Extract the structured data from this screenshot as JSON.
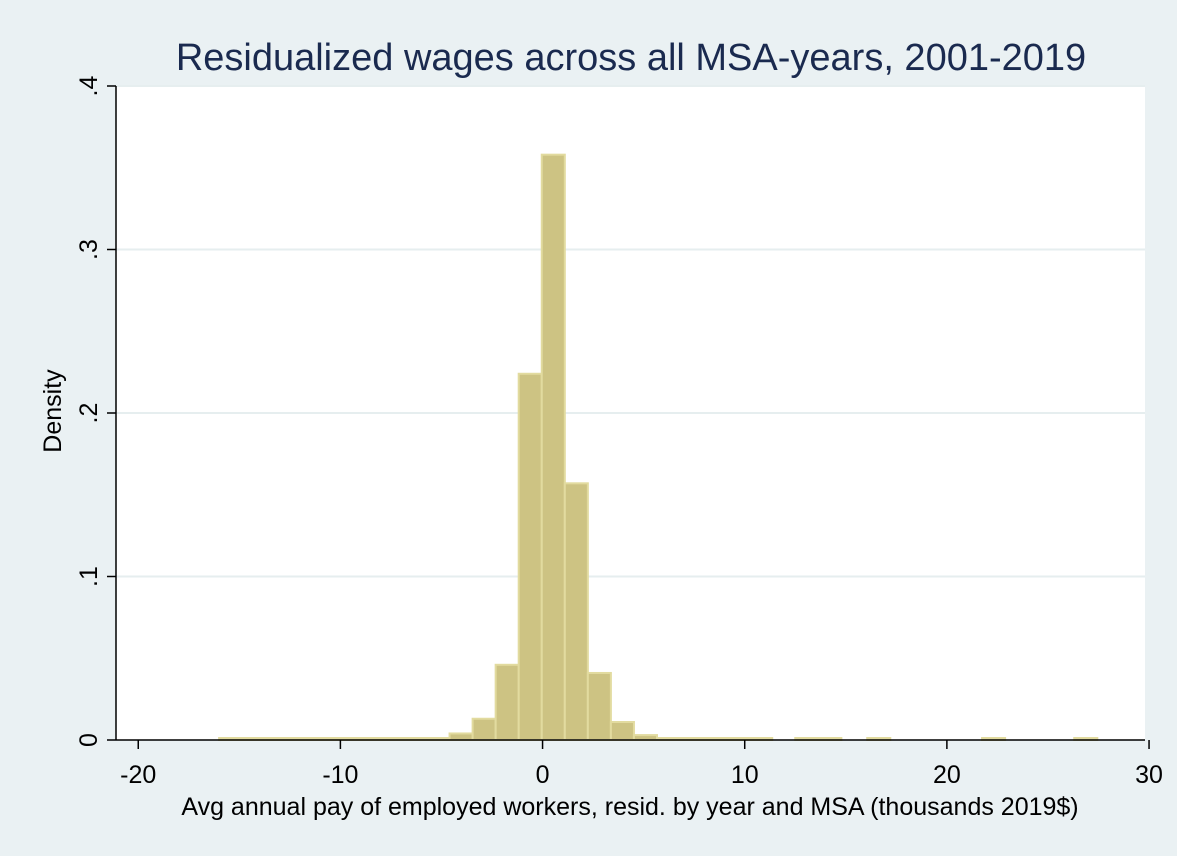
{
  "chart_data": {
    "type": "bar",
    "title": "Residualized wages across all MSA-years, 2001-2019",
    "xlabel": "Avg annual pay of employed workers, resid. by year and MSA (thousands 2019$)",
    "ylabel": "Density",
    "xlim": [
      -21.1,
      29.8
    ],
    "ylim": [
      0,
      0.4
    ],
    "x_ticks": [
      -20,
      -10,
      0,
      10,
      20,
      30
    ],
    "x_tick_labels": [
      "-20",
      "-10",
      "0",
      "10",
      "20",
      "30"
    ],
    "y_ticks": [
      0,
      0.1,
      0.2,
      0.3,
      0.4
    ],
    "y_tick_labels": [
      "0",
      ".1",
      ".2",
      ".3",
      ".4"
    ],
    "grid": true,
    "bin_width": 1.14,
    "bins": [
      {
        "x": -16.0,
        "y": 0.0005
      },
      {
        "x": -14.86,
        "y": 0.0005
      },
      {
        "x": -13.72,
        "y": 0.0005
      },
      {
        "x": -12.58,
        "y": 0.0005
      },
      {
        "x": -11.44,
        "y": 0.0005
      },
      {
        "x": -10.3,
        "y": 0.0005
      },
      {
        "x": -9.16,
        "y": 0.0005
      },
      {
        "x": -8.02,
        "y": 0.0005
      },
      {
        "x": -6.88,
        "y": 0.0005
      },
      {
        "x": -5.74,
        "y": 0.001
      },
      {
        "x": -4.6,
        "y": 0.004
      },
      {
        "x": -3.46,
        "y": 0.013
      },
      {
        "x": -2.32,
        "y": 0.046
      },
      {
        "x": -1.18,
        "y": 0.224
      },
      {
        "x": -0.04,
        "y": 0.358
      },
      {
        "x": 1.1,
        "y": 0.157
      },
      {
        "x": 2.24,
        "y": 0.041
      },
      {
        "x": 3.38,
        "y": 0.011
      },
      {
        "x": 4.52,
        "y": 0.003
      },
      {
        "x": 5.66,
        "y": 0.001
      },
      {
        "x": 6.8,
        "y": 0.0005
      },
      {
        "x": 7.94,
        "y": 0.0005
      },
      {
        "x": 9.08,
        "y": 0.0005
      },
      {
        "x": 10.22,
        "y": 0.0005
      },
      {
        "x": 12.5,
        "y": 0.0005
      },
      {
        "x": 13.64,
        "y": 0.0005
      },
      {
        "x": 16.06,
        "y": 0.0005
      },
      {
        "x": 21.74,
        "y": 0.0005
      },
      {
        "x": 26.3,
        "y": 0.0005
      }
    ],
    "colors": {
      "background": "#eaf1f3",
      "plot_area": "#ffffff",
      "bar_fill": "#cdc383",
      "bar_edge": "#e2db9f",
      "grid": "#e6eeef",
      "title": "#1a2a4f"
    }
  }
}
